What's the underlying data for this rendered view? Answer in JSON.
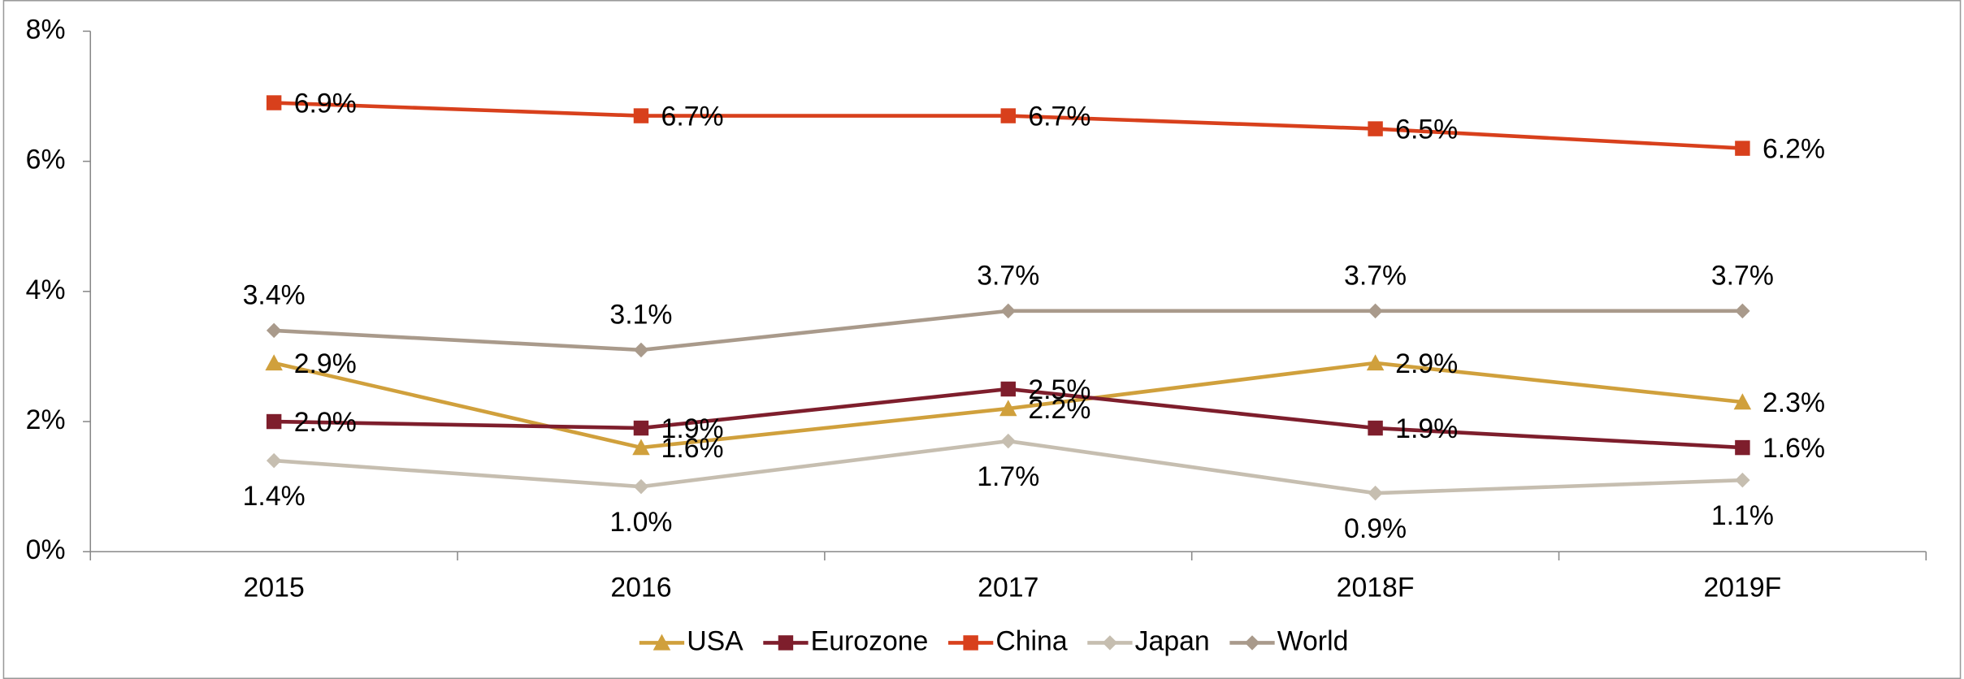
{
  "chart_data": {
    "type": "line",
    "categories": [
      "2015",
      "2016",
      "2017",
      "2018F",
      "2019F"
    ],
    "ylim": [
      0,
      8
    ],
    "yticks": [
      {
        "value": 0,
        "label": "0%"
      },
      {
        "value": 2,
        "label": "2%"
      },
      {
        "value": 4,
        "label": "4%"
      },
      {
        "value": 6,
        "label": "6%"
      },
      {
        "value": 8,
        "label": "8%"
      }
    ],
    "legend": "bottom",
    "series": [
      {
        "name": "USA",
        "color": "#D0A03C",
        "marker": "triangle",
        "values": [
          2.9,
          1.6,
          2.2,
          2.9,
          2.3
        ],
        "value_labels": [
          "2.9%",
          "1.6%",
          "2.2%",
          "2.9%",
          "2.3%"
        ]
      },
      {
        "name": "Eurozone",
        "color": "#7E1E2C",
        "marker": "square",
        "values": [
          2.0,
          1.9,
          2.5,
          1.9,
          1.6
        ],
        "value_labels": [
          "2.0%",
          "1.9%",
          "2.5%",
          "1.9%",
          "1.6%"
        ]
      },
      {
        "name": "China",
        "color": "#D8401C",
        "marker": "square",
        "values": [
          6.9,
          6.7,
          6.7,
          6.5,
          6.2
        ],
        "value_labels": [
          "6.9%",
          "6.7%",
          "6.7%",
          "6.5%",
          "6.2%"
        ]
      },
      {
        "name": "Japan",
        "color": "#C6BEB0",
        "marker": "diamond",
        "values": [
          1.4,
          1.0,
          1.7,
          0.9,
          1.1
        ],
        "value_labels": [
          "1.4%",
          "1.0%",
          "1.7%",
          "0.9%",
          "1.1%"
        ]
      },
      {
        "name": "World",
        "color": "#A99A8B",
        "marker": "diamond",
        "values": [
          3.4,
          3.1,
          3.7,
          3.7,
          3.7
        ],
        "value_labels": [
          "3.4%",
          "3.1%",
          "3.7%",
          "3.7%",
          "3.7%"
        ]
      }
    ]
  }
}
